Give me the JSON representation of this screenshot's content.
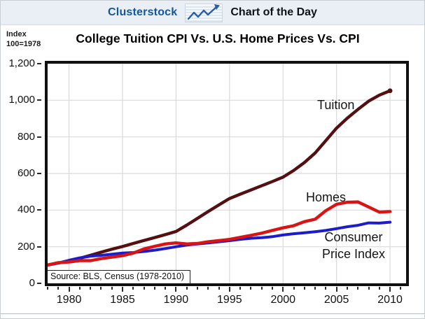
{
  "header": {
    "brand": "Clusterstock",
    "title": "Chart of the Day"
  },
  "index_note": {
    "line1": "Index",
    "line2": "100=1978"
  },
  "chart_title": "College Tuition CPI Vs. U.S. Home Prices Vs. CPI",
  "source_note": "Source: BLS, Census (1978-2010)",
  "annotations": {
    "tuition": "Tuition",
    "homes": "Homes",
    "cpi_line1": "Consumer",
    "cpi_line2": "Price Index"
  },
  "colors": {
    "tuition_line": "#541010",
    "homes_line": "#d81414",
    "cpi_line": "#1c1ccc",
    "grid": "#d9d9d9",
    "plot_border": "#101010",
    "brand_blue": "#14569e",
    "header_bg": "#e9eff5"
  },
  "chart_data": {
    "type": "line",
    "title": "College Tuition CPI Vs. U.S. Home Prices Vs. CPI",
    "xlabel": "",
    "ylabel": "Index 100=1978",
    "x": [
      1978,
      1979,
      1980,
      1981,
      1982,
      1983,
      1984,
      1985,
      1986,
      1987,
      1988,
      1989,
      1990,
      1991,
      1992,
      1993,
      1994,
      1995,
      1996,
      1997,
      1998,
      1999,
      2000,
      2001,
      2002,
      2003,
      2004,
      2005,
      2006,
      2007,
      2008,
      2009,
      2010
    ],
    "xlim": [
      1978,
      2011.5
    ],
    "ylim": [
      0,
      1200
    ],
    "grid": true,
    "legend_position": "inline-labels",
    "yticks": {
      "values": [
        0,
        200,
        400,
        600,
        800,
        1000,
        1200
      ],
      "labels": [
        "0",
        "200",
        "400",
        "600",
        "800",
        "1,000",
        "1,200"
      ]
    },
    "xticks": {
      "values": [
        1980,
        1985,
        1990,
        1995,
        2000,
        2005,
        2010
      ],
      "labels": [
        "1980",
        "1985",
        "1990",
        "1995",
        "2000",
        "2005",
        "2010"
      ]
    },
    "minor_ticks": [
      1978,
      1979,
      1980,
      1981,
      1982,
      1983,
      1984,
      1985,
      1986,
      1987,
      1988,
      1989,
      1990,
      1991,
      1992,
      1993,
      1994,
      1995,
      1996,
      1997,
      1998,
      1999,
      2000,
      2001,
      2002,
      2003,
      2004,
      2005,
      2006,
      2007,
      2008,
      2009,
      2010,
      2011
    ],
    "series": [
      {
        "name": "Tuition",
        "color": "#541010",
        "width": 4.4,
        "end_dot": true,
        "values": [
          100,
          111,
          123,
          137,
          153,
          170,
          186,
          201,
          218,
          234,
          250,
          266,
          283,
          318,
          355,
          392,
          428,
          463,
          487,
          510,
          533,
          556,
          580,
          617,
          660,
          712,
          780,
          848,
          902,
          950,
          995,
          1028,
          1052
        ]
      },
      {
        "name": "Consumer Price Index",
        "color": "#1c1ccc",
        "width": 4.0,
        "end_dot": false,
        "values": [
          100,
          111,
          126,
          139,
          148,
          153,
          159,
          165,
          168,
          174,
          181,
          190,
          200,
          209,
          215,
          221,
          227,
          233,
          240,
          246,
          249,
          255,
          264,
          271,
          276,
          282,
          289,
          299,
          309,
          317,
          330,
          329,
          334
        ]
      },
      {
        "name": "Homes",
        "color": "#d81414",
        "width": 4.4,
        "end_dot": false,
        "values": [
          100,
          113,
          116,
          124,
          124,
          135,
          143,
          151,
          165,
          188,
          202,
          215,
          221,
          215,
          218,
          227,
          233,
          240,
          251,
          262,
          274,
          289,
          303,
          315,
          337,
          350,
          397,
          432,
          443,
          445,
          417,
          389,
          392
        ]
      }
    ]
  }
}
